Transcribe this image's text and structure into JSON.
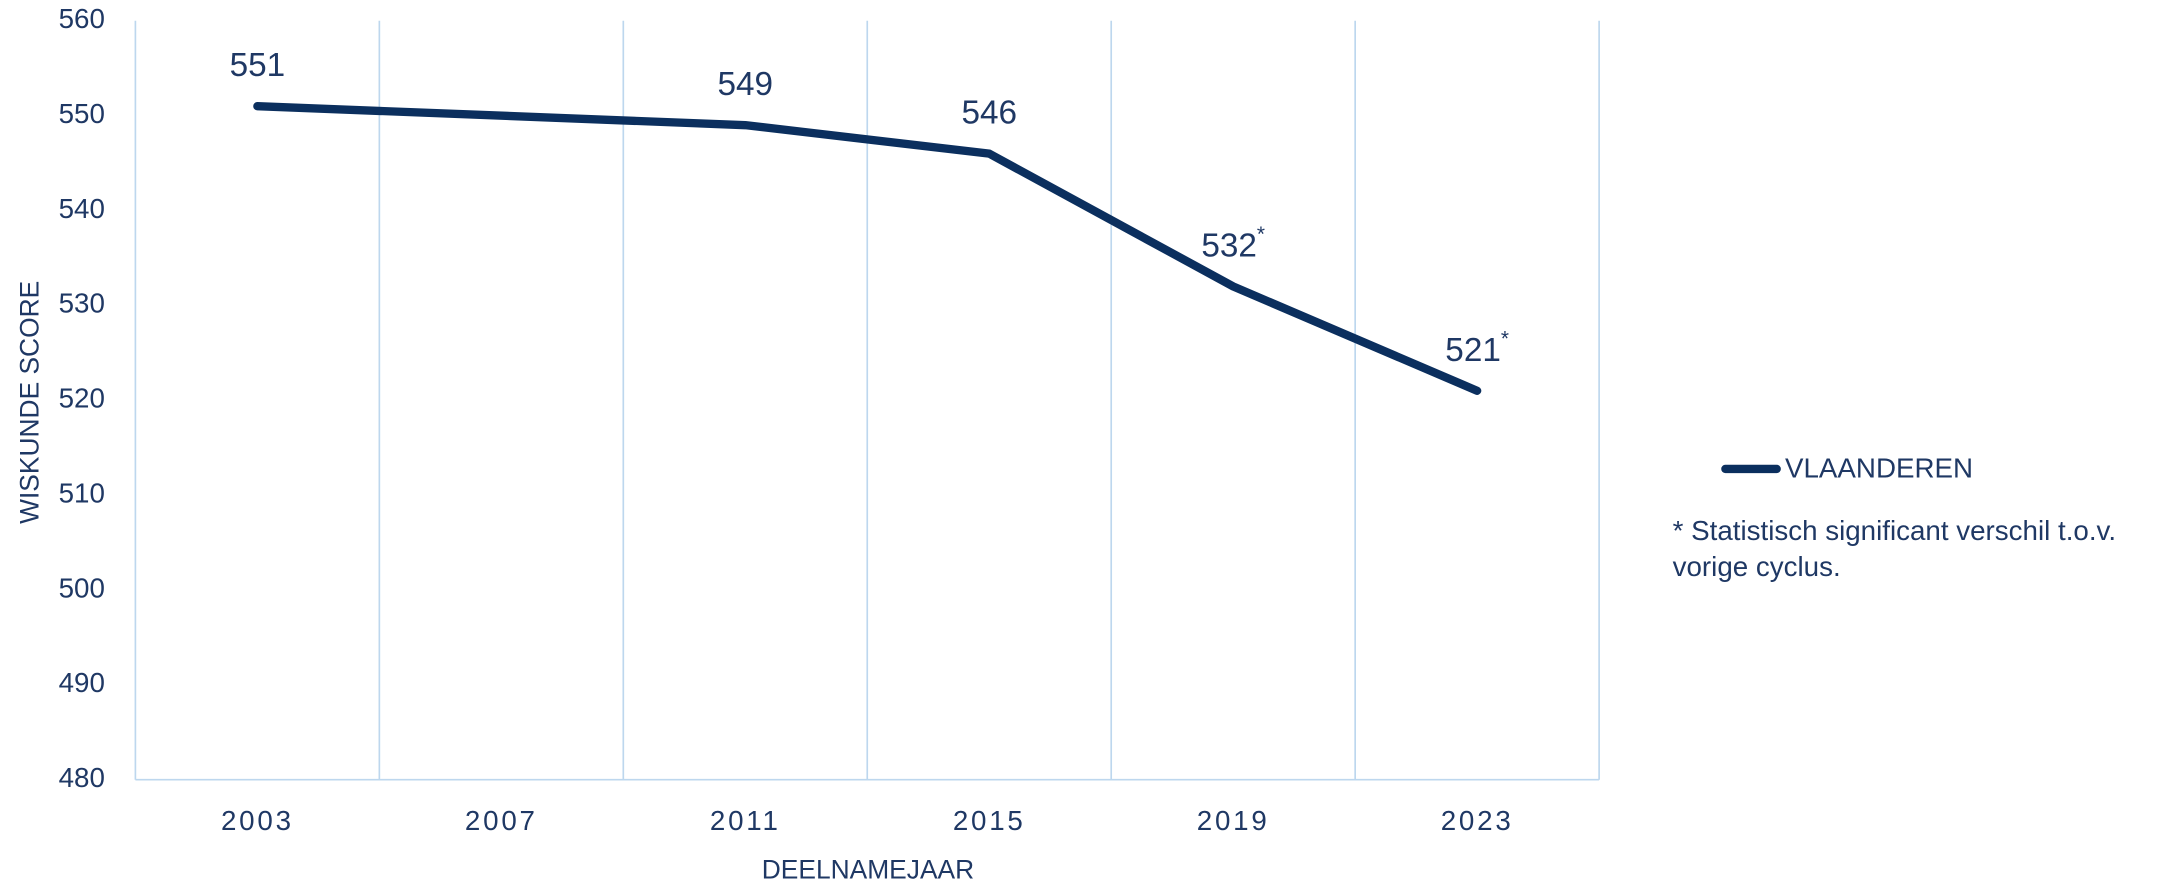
{
  "chart_data": {
    "type": "line",
    "x": [
      2003,
      2011,
      2015,
      2019,
      2023
    ],
    "series": [
      {
        "name": "VLAANDEREN",
        "color": "#0b2f5e",
        "values": [
          551,
          549,
          546,
          532,
          521
        ],
        "value_labels": [
          "551",
          "549",
          "546",
          "532*",
          "521*"
        ]
      }
    ],
    "xlim": [
      2001,
      2025
    ],
    "xticks": [
      2003,
      2007,
      2011,
      2015,
      2019,
      2023
    ],
    "ylim": [
      480,
      560
    ],
    "yticks": [
      480,
      490,
      500,
      510,
      520,
      530,
      540,
      550,
      560
    ],
    "xlabel": "DEELNAMEJAAR",
    "ylabel": "WISKUNDE SCORE",
    "note": [
      "* Statistisch significant verschil t.o.v.",
      "vorige cyclus."
    ],
    "grid": true,
    "legend": "right"
  }
}
